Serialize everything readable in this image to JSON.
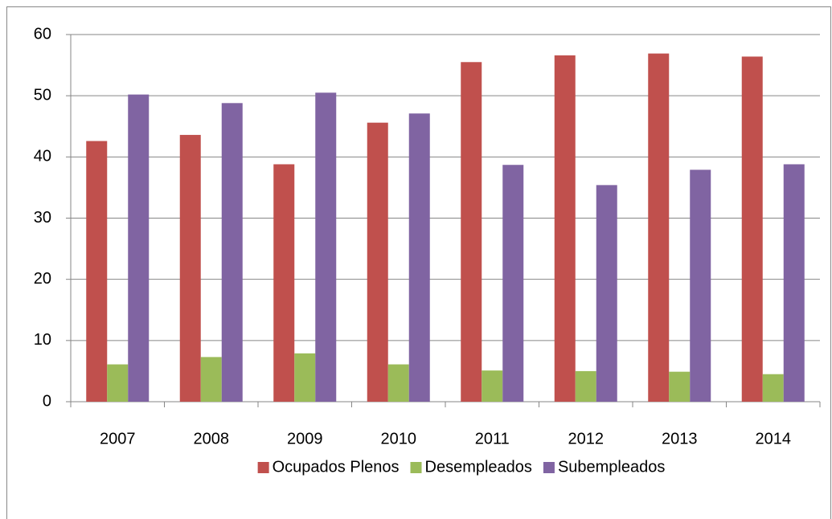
{
  "chart_data": {
    "type": "bar",
    "categories": [
      "2007",
      "2008",
      "2009",
      "2010",
      "2011",
      "2012",
      "2013",
      "2014"
    ],
    "series": [
      {
        "name": "Ocupados Plenos",
        "color": "#c0504d",
        "values": [
          42.6,
          43.6,
          38.8,
          45.6,
          55.5,
          56.6,
          56.9,
          56.4
        ]
      },
      {
        "name": "Desempleados",
        "color": "#9bbb59",
        "values": [
          6.1,
          7.3,
          7.9,
          6.1,
          5.1,
          5.0,
          4.9,
          4.5
        ]
      },
      {
        "name": "Subempleados",
        "color": "#8064a2",
        "values": [
          50.2,
          48.8,
          50.5,
          47.1,
          38.7,
          35.4,
          37.9,
          38.8
        ]
      }
    ],
    "ylim": [
      0,
      60
    ],
    "yticks": [
      0,
      10,
      20,
      30,
      40,
      50,
      60
    ],
    "grid": true,
    "legend": "bottom"
  }
}
